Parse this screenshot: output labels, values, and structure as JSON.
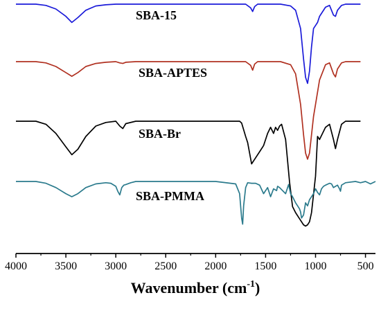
{
  "chart_data": {
    "type": "line",
    "xlabel": "Wavenumber (cm",
    "xlabel_sup": "-1",
    "xlabel_close": ")",
    "xlim": [
      4000,
      400
    ],
    "x_ticks": [
      4000,
      3500,
      3000,
      2500,
      2000,
      1500,
      1000,
      500
    ],
    "x_tick_labels": [
      "4000",
      "3500",
      "3000",
      "2500",
      "2000",
      "1500",
      "1000",
      "500"
    ],
    "y_axis": "transmittance, arbitrary offset (no ticks shown)",
    "grid": false,
    "legend": "none — series labeled inline",
    "series": [
      {
        "name": "SBA-15",
        "color": "#1a1ad9",
        "x": [
          4000,
          3800,
          3700,
          3600,
          3500,
          3440,
          3380,
          3300,
          3200,
          3100,
          3000,
          2600,
          2000,
          1700,
          1650,
          1630,
          1610,
          1580,
          1500,
          1350,
          1250,
          1200,
          1150,
          1120,
          1100,
          1080,
          1060,
          1040,
          1020,
          1000,
          980,
          960,
          900,
          860,
          820,
          800,
          780,
          740,
          700,
          600,
          550
        ],
        "y": [
          0,
          0,
          -2,
          -8,
          -20,
          -30,
          -22,
          -10,
          -3,
          -1,
          0,
          0,
          0,
          0,
          -6,
          -12,
          -4,
          0,
          0,
          0,
          -3,
          -10,
          -40,
          -90,
          -120,
          -130,
          -110,
          -70,
          -40,
          -35,
          -30,
          -20,
          -5,
          -2,
          -18,
          -20,
          -10,
          -2,
          0,
          0,
          0
        ]
      },
      {
        "name": "SBA-APTES",
        "color": "#b03020",
        "x": [
          4000,
          3800,
          3700,
          3600,
          3500,
          3440,
          3380,
          3300,
          3200,
          3100,
          3000,
          2960,
          2930,
          2900,
          2800,
          2000,
          1700,
          1650,
          1630,
          1610,
          1580,
          1500,
          1350,
          1250,
          1200,
          1150,
          1120,
          1100,
          1080,
          1060,
          1040,
          1020,
          1000,
          980,
          960,
          900,
          860,
          820,
          800,
          780,
          740,
          700,
          600,
          550
        ],
        "y": [
          0,
          0,
          -2,
          -8,
          -18,
          -24,
          -18,
          -8,
          -3,
          -1,
          0,
          -2,
          -3,
          -1,
          0,
          0,
          0,
          -6,
          -14,
          -4,
          0,
          0,
          0,
          -5,
          -20,
          -70,
          -120,
          -150,
          -160,
          -150,
          -120,
          -90,
          -70,
          -50,
          -30,
          -5,
          -2,
          -20,
          -25,
          -12,
          -2,
          0,
          0,
          0
        ]
      },
      {
        "name": "SBA-Br",
        "color": "#000000",
        "x": [
          4000,
          3800,
          3700,
          3600,
          3500,
          3440,
          3380,
          3300,
          3200,
          3100,
          3000,
          2960,
          2930,
          2900,
          2800,
          2000,
          1760,
          1740,
          1720,
          1700,
          1680,
          1640,
          1600,
          1560,
          1520,
          1480,
          1450,
          1420,
          1400,
          1380,
          1360,
          1340,
          1300,
          1260,
          1230,
          1200,
          1160,
          1120,
          1100,
          1080,
          1060,
          1040,
          1020,
          1000,
          980,
          960,
          900,
          860,
          820,
          800,
          780,
          740,
          700,
          600,
          550
        ],
        "y": [
          0,
          0,
          -5,
          -20,
          -42,
          -55,
          -46,
          -25,
          -8,
          -2,
          0,
          -8,
          -12,
          -4,
          0,
          0,
          0,
          -3,
          -14,
          -25,
          -35,
          -70,
          -60,
          -50,
          -40,
          -20,
          -10,
          -20,
          -10,
          -15,
          -8,
          -5,
          -30,
          -100,
          -140,
          -150,
          -160,
          -170,
          -172,
          -170,
          -165,
          -150,
          -120,
          -90,
          -25,
          -30,
          -10,
          -5,
          -30,
          -45,
          -30,
          -5,
          0,
          0,
          0
        ]
      },
      {
        "name": "SBA-PMMA",
        "color": "#2a7a8c",
        "x": [
          4000,
          3800,
          3700,
          3600,
          3500,
          3440,
          3380,
          3300,
          3200,
          3100,
          3050,
          3000,
          2980,
          2960,
          2940,
          2920,
          2900,
          2850,
          2800,
          2000,
          1800,
          1760,
          1740,
          1730,
          1720,
          1700,
          1680,
          1640,
          1600,
          1560,
          1520,
          1480,
          1450,
          1420,
          1390,
          1380,
          1360,
          1300,
          1270,
          1250,
          1230,
          1200,
          1180,
          1160,
          1150,
          1140,
          1120,
          1100,
          1080,
          1060,
          1040,
          1020,
          1000,
          980,
          960,
          940,
          920,
          900,
          860,
          840,
          820,
          800,
          780,
          760,
          750,
          740,
          700,
          600,
          550,
          500,
          450,
          400
        ],
        "y": [
          0,
          0,
          -3,
          -10,
          -20,
          -25,
          -20,
          -10,
          -4,
          -2,
          -3,
          -8,
          -16,
          -22,
          -10,
          -6,
          -5,
          -2,
          0,
          0,
          -4,
          -20,
          -60,
          -70,
          -40,
          -10,
          -2,
          -3,
          -3,
          -6,
          -20,
          -10,
          -25,
          -12,
          -15,
          -8,
          -10,
          -20,
          -5,
          -20,
          -25,
          -35,
          -40,
          -45,
          -50,
          -60,
          -55,
          -35,
          -40,
          -30,
          -25,
          -20,
          -12,
          -18,
          -22,
          -12,
          -8,
          -6,
          -3,
          -4,
          -10,
          -8,
          -6,
          -12,
          -16,
          -6,
          -2,
          0,
          -2,
          0,
          -4,
          0
        ]
      }
    ],
    "series_labels": [
      "SBA-15",
      "SBA-APTES",
      "SBA-Br",
      "SBA-PMMA"
    ]
  }
}
